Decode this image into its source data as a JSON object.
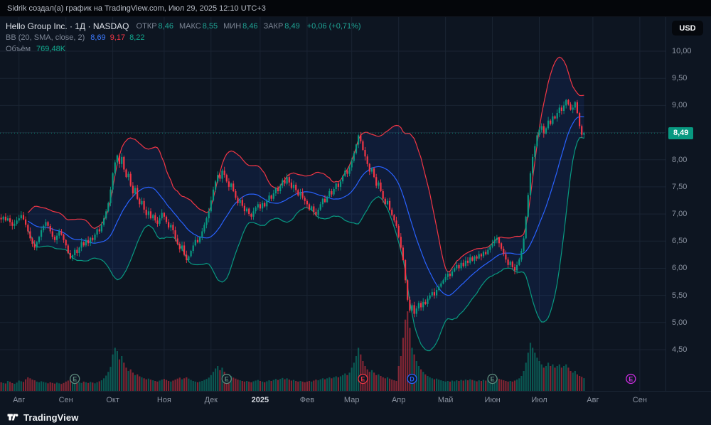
{
  "attribution": "Sidrik создал(а) график на TradingView.com, Июл 29, 2025 12:10 UTC+3",
  "currency_button": "USD",
  "brand": {
    "name": "TradingView"
  },
  "legend": {
    "title_full": "Hello Group Inc. · 1Д · NASDAQ",
    "ohlc": [
      {
        "label": "ОТКР",
        "value": "8,46"
      },
      {
        "label": "МАКС",
        "value": "8,55"
      },
      {
        "label": "МИН",
        "value": "8,46"
      },
      {
        "label": "ЗАКР",
        "value": "8,49"
      }
    ],
    "change": "+0,06 (+0,71%)",
    "bb": {
      "label": "BB (20, SMA, close, 2)",
      "basis": "8,69",
      "upper": "9,17",
      "lower": "8,22"
    },
    "volume": {
      "label": "Объём",
      "value": "769,48K"
    }
  },
  "chart_data": {
    "type": "candlestick",
    "symbol": "Hello Group Inc.",
    "exchange": "NASDAQ",
    "interval": "1Д",
    "title": "Hello Group Inc. · 1Д · NASDAQ with Bollinger Bands (20, SMA, close, 2) and Volume",
    "last_price": 8.49,
    "last_price_label": "8,49",
    "total_slots": 298,
    "price_axis": {
      "min": 4.5,
      "max": 10,
      "ticks": [
        {
          "label": "10,00",
          "value": 10
        },
        {
          "label": "9,50",
          "value": 9.5
        },
        {
          "label": "9,00",
          "value": 9
        },
        {
          "label": "8,50",
          "value": 8.5
        },
        {
          "label": "8,00",
          "value": 8
        },
        {
          "label": "7,50",
          "value": 7.5
        },
        {
          "label": "7,00",
          "value": 7
        },
        {
          "label": "6,50",
          "value": 6.5
        },
        {
          "label": "6,00",
          "value": 6
        },
        {
          "label": "5,50",
          "value": 5.5
        },
        {
          "label": "5,00",
          "value": 5
        },
        {
          "label": "4,50",
          "value": 4.5
        }
      ]
    },
    "x_ticks": [
      {
        "label": "Авг",
        "slot": 8
      },
      {
        "label": "Сен",
        "slot": 29
      },
      {
        "label": "Окт",
        "slot": 50
      },
      {
        "label": "Ноя",
        "slot": 73
      },
      {
        "label": "Дек",
        "slot": 94
      },
      {
        "label": "2025",
        "slot": 116,
        "bold": true
      },
      {
        "label": "Фев",
        "slot": 137
      },
      {
        "label": "Мар",
        "slot": 157
      },
      {
        "label": "Апр",
        "slot": 178
      },
      {
        "label": "Май",
        "slot": 199
      },
      {
        "label": "Июн",
        "slot": 220
      },
      {
        "label": "Июл",
        "slot": 241
      },
      {
        "label": "Авг",
        "slot": 265
      },
      {
        "label": "Сен",
        "slot": 286
      }
    ],
    "bb": {
      "period": 20,
      "mult": 2,
      "basis_color": "#2962ff",
      "upper_color": "#f23645",
      "lower_color": "#089981",
      "basis_value": 8.69,
      "upper_value": 9.17,
      "lower_value": 8.22
    },
    "colors": {
      "up": "#089981",
      "down": "#f23645",
      "grid": "#1a2433",
      "band_fill": "rgba(41,98,255,0.10)",
      "bg": "#0d1521"
    },
    "closes": [
      6.9,
      6.95,
      6.88,
      6.92,
      6.85,
      6.78,
      6.82,
      6.88,
      6.92,
      6.98,
      6.9,
      6.8,
      6.68,
      6.55,
      6.45,
      6.38,
      6.48,
      6.58,
      6.7,
      6.78,
      6.85,
      6.78,
      6.68,
      6.58,
      6.52,
      6.6,
      6.68,
      6.62,
      6.52,
      6.42,
      6.28,
      6.18,
      6.24,
      6.34,
      6.28,
      6.38,
      6.48,
      6.42,
      6.52,
      6.46,
      6.56,
      6.52,
      6.62,
      6.72,
      6.68,
      6.8,
      6.92,
      7.05,
      7.2,
      7.45,
      7.75,
      7.95,
      8.08,
      7.92,
      8.05,
      7.82,
      7.68,
      7.74,
      7.52,
      7.38,
      7.48,
      7.28,
      7.18,
      7.24,
      7.08,
      6.98,
      7.05,
      6.92,
      6.98,
      6.88,
      6.82,
      6.92,
      7.02,
      6.95,
      6.85,
      6.75,
      6.8,
      6.7,
      6.55,
      6.45,
      6.35,
      6.42,
      6.25,
      6.15,
      6.22,
      6.32,
      6.42,
      6.52,
      6.48,
      6.58,
      6.68,
      6.8,
      6.92,
      7.05,
      7.25,
      7.45,
      7.6,
      7.72,
      7.65,
      7.8,
      7.72,
      7.6,
      7.5,
      7.56,
      7.42,
      7.3,
      7.2,
      7.26,
      7.15,
      7.05,
      7.1,
      7.0,
      6.95,
      7.05,
      7.12,
      7.18,
      7.1,
      7.2,
      7.14,
      7.24,
      7.34,
      7.28,
      7.38,
      7.48,
      7.42,
      7.52,
      7.62,
      7.56,
      7.68,
      7.58,
      7.48,
      7.54,
      7.44,
      7.34,
      7.4,
      7.3,
      7.24,
      7.18,
      7.08,
      7.14,
      7.04,
      6.98,
      7.08,
      7.18,
      7.28,
      7.22,
      7.32,
      7.42,
      7.36,
      7.46,
      7.56,
      7.5,
      7.6,
      7.7,
      7.8,
      7.74,
      7.86,
      7.98,
      8.12,
      8.28,
      8.45,
      8.34,
      8.18,
      8.06,
      7.92,
      7.78,
      7.84,
      7.68,
      7.52,
      7.58,
      7.42,
      7.28,
      7.18,
      7.24,
      7.08,
      6.98,
      6.88,
      6.78,
      6.58,
      6.38,
      6.15,
      5.78,
      5.42,
      5.22,
      5.32,
      5.16,
      5.26,
      5.36,
      5.28,
      5.38,
      5.34,
      5.44,
      5.5,
      5.56,
      5.5,
      5.6,
      5.66,
      5.72,
      5.78,
      5.84,
      5.9,
      5.86,
      5.94,
      6.0,
      6.06,
      6.0,
      6.1,
      6.04,
      6.14,
      6.1,
      6.2,
      6.14,
      6.22,
      6.18,
      6.26,
      6.22,
      6.3,
      6.26,
      6.34,
      6.4,
      6.46,
      6.52,
      6.56,
      6.46,
      6.36,
      6.26,
      6.16,
      6.06,
      6.12,
      6.02,
      5.96,
      6.06,
      6.16,
      6.32,
      6.55,
      6.95,
      7.35,
      7.75,
      8.05,
      8.25,
      8.45,
      8.55,
      8.62,
      8.48,
      8.58,
      8.72,
      8.66,
      8.8,
      8.76,
      8.86,
      8.96,
      8.9,
      9.0,
      9.1,
      9.02,
      8.92,
      8.96,
      9.06,
      8.86,
      8.62,
      8.46,
      8.49
    ],
    "volumes_k": [
      520,
      480,
      450,
      600,
      550,
      470,
      430,
      500,
      620,
      580,
      540,
      700,
      820,
      760,
      680,
      640,
      560,
      520,
      580,
      540,
      500,
      460,
      520,
      480,
      440,
      500,
      460,
      420,
      480,
      560,
      620,
      680,
      540,
      500,
      460,
      520,
      480,
      560,
      520,
      480,
      540,
      500,
      460,
      520,
      580,
      640,
      760,
      920,
      1150,
      1450,
      2200,
      2600,
      2400,
      1900,
      2100,
      1700,
      1400,
      1200,
      1300,
      1100,
      950,
      1000,
      880,
      820,
      760,
      700,
      740,
      680,
      640,
      600,
      560,
      620,
      680,
      720,
      660,
      600,
      560,
      620,
      680,
      740,
      800,
      700,
      760,
      820,
      740,
      660,
      600,
      560,
      520,
      560,
      600,
      660,
      720,
      800,
      950,
      1150,
      1350,
      1500,
      1250,
      1400,
      1150,
      950,
      850,
      900,
      800,
      740,
      680,
      640,
      600,
      560,
      600,
      560,
      520,
      580,
      620,
      660,
      600,
      560,
      520,
      580,
      640,
      600,
      660,
      720,
      660,
      720,
      780,
      700,
      760,
      680,
      620,
      660,
      600,
      560,
      600,
      560,
      520,
      560,
      600,
      560,
      620,
      680,
      640,
      700,
      760,
      700,
      760,
      820,
      760,
      820,
      880,
      820,
      880,
      950,
      1050,
      950,
      1100,
      1400,
      1700,
      2100,
      2600,
      2200,
      1800,
      1500,
      1300,
      1150,
      1250,
      1100,
      950,
      1000,
      900,
      820,
      760,
      820,
      740,
      680,
      640,
      600,
      1500,
      2100,
      3200,
      4300,
      4800,
      3800,
      2600,
      2200,
      1800,
      1500,
      1300,
      1150,
      1000,
      900,
      820,
      760,
      700,
      740,
      680,
      640,
      600,
      560,
      600,
      560,
      620,
      580,
      640,
      600,
      660,
      620,
      680,
      640,
      700,
      660,
      620,
      580,
      640,
      600,
      660,
      620,
      680,
      720,
      760,
      820,
      780,
      720,
      680,
      640,
      600,
      560,
      600,
      560,
      620,
      680,
      760,
      900,
      1200,
      1700,
      2300,
      2900,
      2600,
      2300,
      2000,
      1800,
      1600,
      1400,
      1500,
      1700,
      1500,
      1600,
      1400,
      1500,
      1600,
      1400,
      1500,
      1600,
      1400,
      1200,
      1100,
      1200,
      1000,
      900,
      850,
      769
    ],
    "events": [
      {
        "type": "E",
        "slot": 33,
        "color": "#5f8c7d"
      },
      {
        "type": "E",
        "slot": 101,
        "color": "#5f8c7d"
      },
      {
        "type": "E",
        "slot": 162,
        "color": "#f23645"
      },
      {
        "type": "D",
        "slot": 184,
        "color": "#2962ff"
      },
      {
        "type": "E",
        "slot": 220,
        "color": "#5f8c7d"
      },
      {
        "type": "E",
        "slot": 282,
        "color": "#cc2ee0"
      }
    ]
  }
}
